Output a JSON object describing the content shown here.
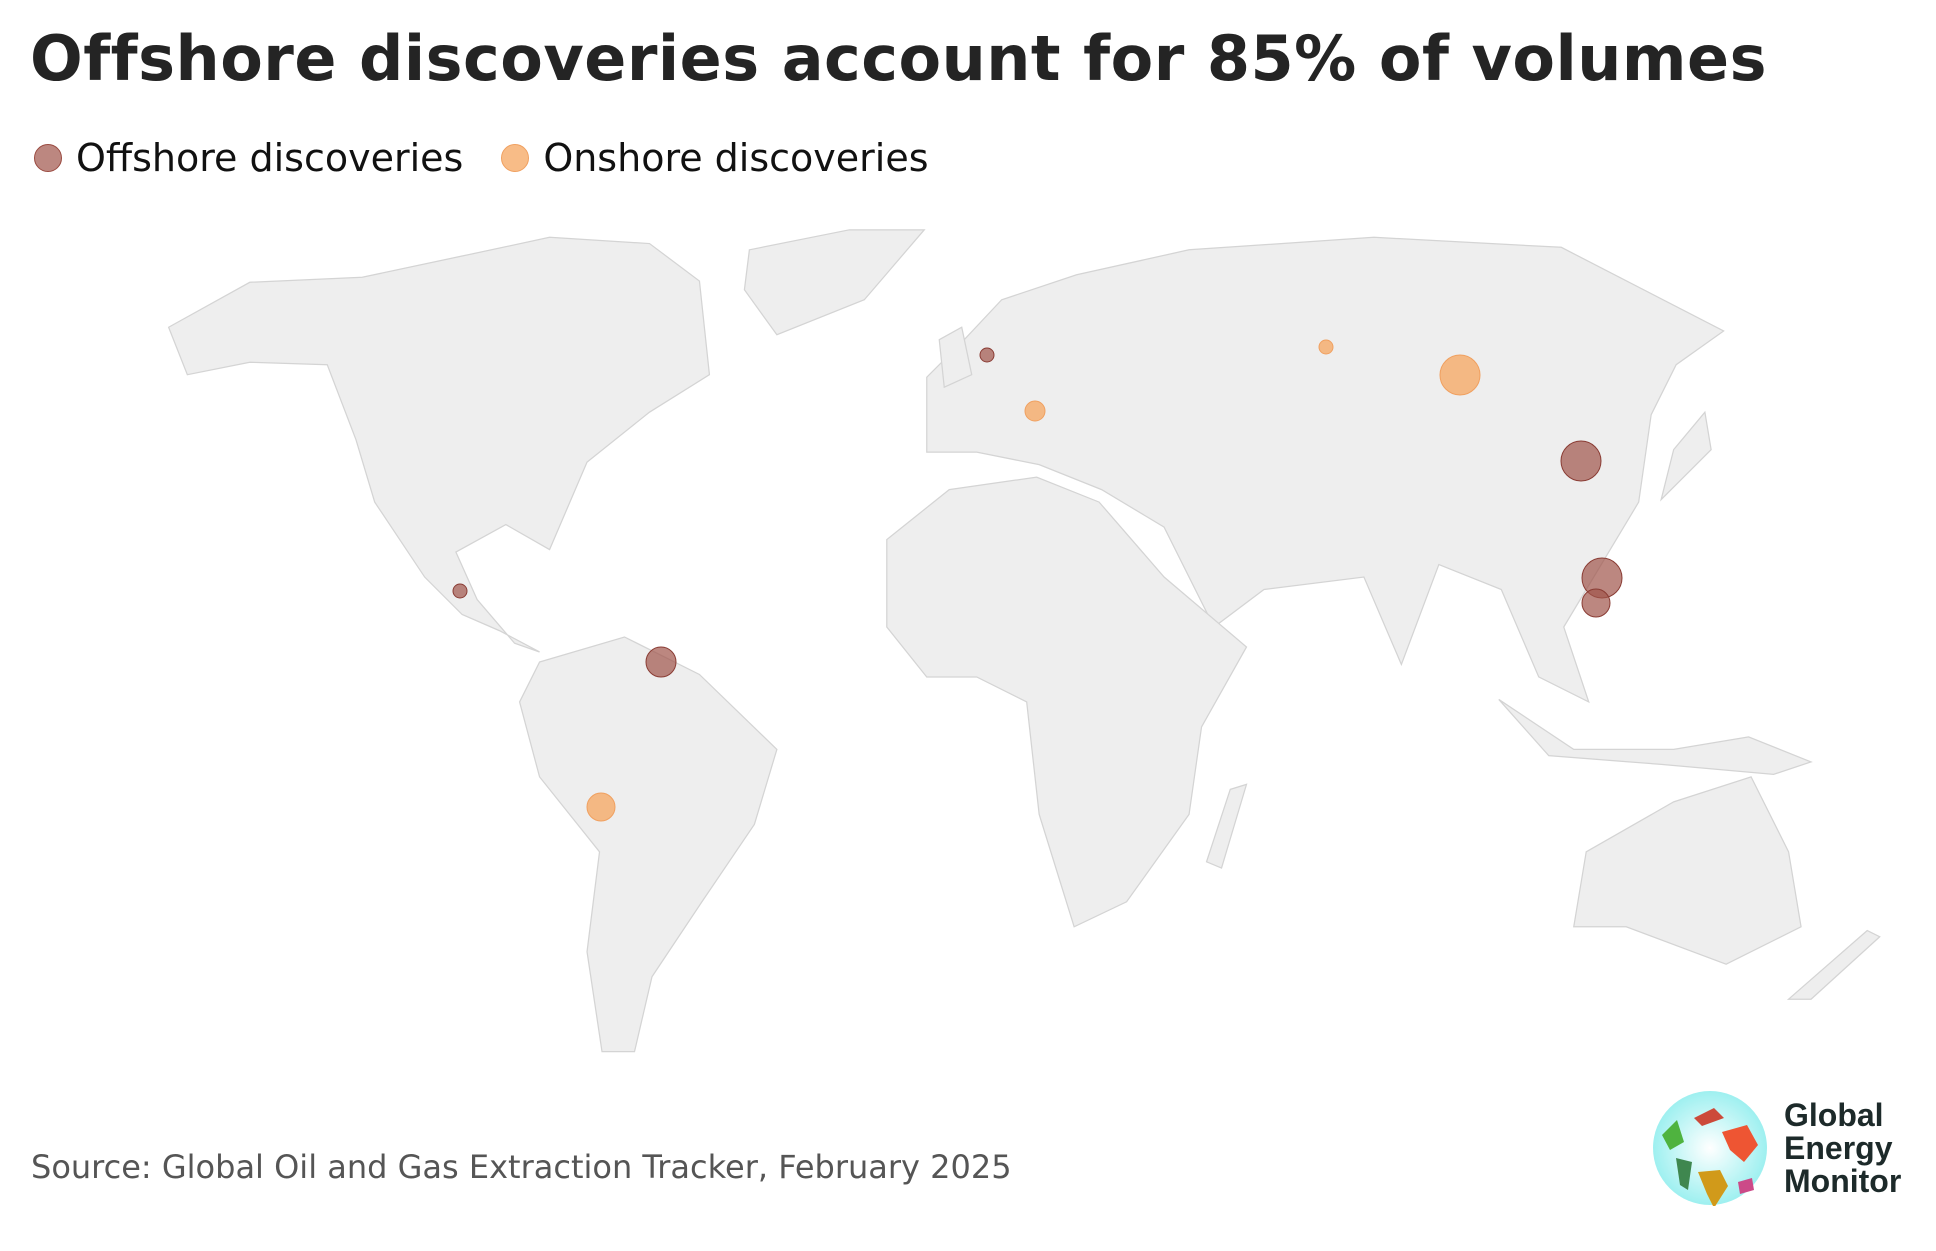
{
  "title": "Offshore discoveries account for 85% of volumes",
  "legend": [
    {
      "label": "Offshore discoveries",
      "color": "#a0544a"
    },
    {
      "label": "Onshore discoveries",
      "color": "#f5a55f"
    }
  ],
  "map": {
    "land_color": "#eeeeee",
    "border_color": "#d4d4d4"
  },
  "source": "Source: Global Oil and Gas Extraction Tracker, February 2025",
  "logo": {
    "line1": "Global",
    "line2": "Energy",
    "line3": "Monitor"
  }
}
